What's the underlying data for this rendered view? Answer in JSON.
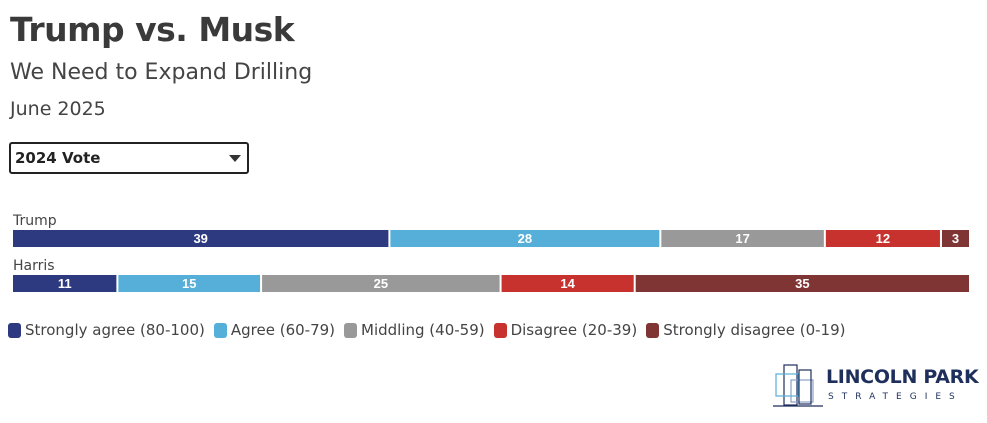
{
  "header": {
    "title": "Trump vs. Musk",
    "subtitle": "We Need to Expand Drilling",
    "date": "June 2025"
  },
  "filter": {
    "selected": "2024 Vote"
  },
  "colors": {
    "strongly_agree": "#2e3a80",
    "agree": "#56afd8",
    "middling": "#999999",
    "disagree": "#c7322e",
    "strongly_disagree": "#7e3534"
  },
  "chart_data": {
    "type": "bar",
    "orientation": "horizontal",
    "stacked": true,
    "categories": [
      "Trump",
      "Harris"
    ],
    "series": [
      {
        "name": "Strongly agree (80-100)",
        "values": [
          39,
          11
        ],
        "color": "#2e3a80"
      },
      {
        "name": "Agree (60-79)",
        "values": [
          28,
          15
        ],
        "color": "#56afd8"
      },
      {
        "name": "Middling (40-59)",
        "values": [
          17,
          25
        ],
        "color": "#999999"
      },
      {
        "name": "Disagree (20-39)",
        "values": [
          12,
          14
        ],
        "color": "#c7322e"
      },
      {
        "name": "Strongly disagree (0-19)",
        "values": [
          3,
          35
        ],
        "color": "#7e3534"
      }
    ],
    "legend_position": "bottom"
  },
  "logo": {
    "line1": "LINCOLN PARK",
    "line2": "STRATEGIES"
  }
}
